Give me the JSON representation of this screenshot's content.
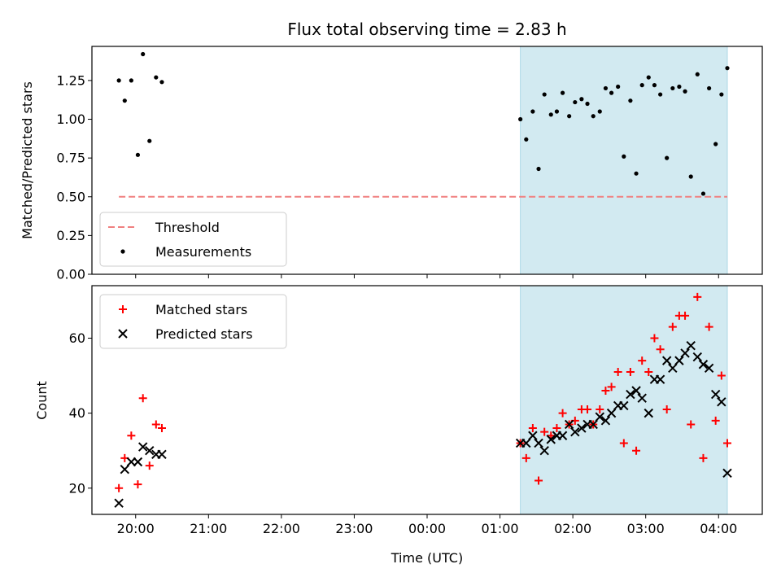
{
  "chart_data": {
    "type": "scatter",
    "title": "Flux total observing time = 2.83 h",
    "xlabel": "Time (UTC)",
    "x_unit": "hours since 20:00 UTC (axis shows clock time)",
    "x_ticks": [
      0,
      1,
      2,
      3,
      4,
      5,
      6,
      7,
      8
    ],
    "x_tick_labels": [
      "20:00",
      "21:00",
      "22:00",
      "23:00",
      "00:00",
      "01:00",
      "02:00",
      "03:00",
      "04:00"
    ],
    "xlim": [
      -0.6,
      8.6
    ],
    "shaded_span": {
      "x": [
        5.28,
        8.12
      ],
      "color": "#add8e6"
    },
    "panels": [
      {
        "ylabel": "Matched/Predicted stars",
        "ylim": [
          0.0,
          1.47
        ],
        "y_ticks": [
          0.0,
          0.25,
          0.5,
          0.75,
          1.0,
          1.25
        ],
        "y_tick_labels": [
          "0.00",
          "0.25",
          "0.50",
          "0.75",
          "1.00",
          "1.25"
        ],
        "legend": {
          "position": "lower left"
        },
        "series": [
          {
            "name": "Threshold",
            "kind": "hline",
            "y": 0.5,
            "x": [
              -0.23,
              8.12
            ],
            "color": "#f08080",
            "style": "dashed"
          },
          {
            "name": "Measurements",
            "kind": "dot",
            "color": "#000000",
            "points": [
              [
                -0.23,
                1.25
              ],
              [
                -0.15,
                1.12
              ],
              [
                -0.06,
                1.25
              ],
              [
                0.03,
                0.77
              ],
              [
                0.1,
                1.42
              ],
              [
                0.19,
                0.86
              ],
              [
                0.28,
                1.27
              ],
              [
                0.36,
                1.24
              ],
              [
                5.28,
                1.0
              ],
              [
                5.36,
                0.87
              ],
              [
                5.45,
                1.05
              ],
              [
                5.53,
                0.68
              ],
              [
                5.61,
                1.16
              ],
              [
                5.7,
                1.03
              ],
              [
                5.78,
                1.05
              ],
              [
                5.86,
                1.17
              ],
              [
                5.95,
                1.02
              ],
              [
                6.03,
                1.11
              ],
              [
                6.12,
                1.13
              ],
              [
                6.2,
                1.1
              ],
              [
                6.28,
                1.02
              ],
              [
                6.37,
                1.05
              ],
              [
                6.45,
                1.2
              ],
              [
                6.53,
                1.17
              ],
              [
                6.62,
                1.21
              ],
              [
                6.7,
                0.76
              ],
              [
                6.79,
                1.12
              ],
              [
                6.87,
                0.65
              ],
              [
                6.95,
                1.22
              ],
              [
                7.04,
                1.27
              ],
              [
                7.12,
                1.22
              ],
              [
                7.2,
                1.16
              ],
              [
                7.29,
                0.75
              ],
              [
                7.37,
                1.2
              ],
              [
                7.46,
                1.21
              ],
              [
                7.54,
                1.18
              ],
              [
                7.62,
                0.63
              ],
              [
                7.71,
                1.29
              ],
              [
                7.79,
                0.52
              ],
              [
                7.87,
                1.2
              ],
              [
                7.96,
                0.84
              ],
              [
                8.04,
                1.16
              ],
              [
                8.12,
                1.33
              ]
            ]
          }
        ]
      },
      {
        "ylabel": "Count",
        "ylim": [
          13.0,
          74.0
        ],
        "y_ticks": [
          20,
          40,
          60
        ],
        "y_tick_labels": [
          "20",
          "40",
          "60"
        ],
        "legend": {
          "position": "upper left"
        },
        "series": [
          {
            "name": "Matched stars",
            "kind": "plus",
            "color": "#ff0000",
            "points": [
              [
                -0.23,
                20
              ],
              [
                -0.15,
                28
              ],
              [
                -0.06,
                34
              ],
              [
                0.03,
                21
              ],
              [
                0.1,
                44
              ],
              [
                0.19,
                26
              ],
              [
                0.28,
                37
              ],
              [
                0.36,
                36
              ],
              [
                5.28,
                32
              ],
              [
                5.36,
                28
              ],
              [
                5.45,
                36
              ],
              [
                5.53,
                22
              ],
              [
                5.61,
                35
              ],
              [
                5.7,
                34
              ],
              [
                5.78,
                36
              ],
              [
                5.86,
                40
              ],
              [
                5.95,
                37
              ],
              [
                6.03,
                38
              ],
              [
                6.12,
                41
              ],
              [
                6.2,
                41
              ],
              [
                6.28,
                37
              ],
              [
                6.37,
                41
              ],
              [
                6.45,
                46
              ],
              [
                6.53,
                47
              ],
              [
                6.62,
                51
              ],
              [
                6.7,
                32
              ],
              [
                6.79,
                51
              ],
              [
                6.87,
                30
              ],
              [
                6.95,
                54
              ],
              [
                7.04,
                51
              ],
              [
                7.12,
                60
              ],
              [
                7.2,
                57
              ],
              [
                7.29,
                41
              ],
              [
                7.37,
                63
              ],
              [
                7.46,
                66
              ],
              [
                7.54,
                66
              ],
              [
                7.62,
                37
              ],
              [
                7.71,
                71
              ],
              [
                7.79,
                28
              ],
              [
                7.87,
                63
              ],
              [
                7.96,
                38
              ],
              [
                8.04,
                50
              ],
              [
                8.12,
                32
              ]
            ]
          },
          {
            "name": "Predicted stars",
            "kind": "x",
            "color": "#000000",
            "points": [
              [
                -0.23,
                16
              ],
              [
                -0.15,
                25
              ],
              [
                -0.06,
                27
              ],
              [
                0.03,
                27
              ],
              [
                0.1,
                31
              ],
              [
                0.19,
                30
              ],
              [
                0.28,
                29
              ],
              [
                0.36,
                29
              ],
              [
                5.28,
                32
              ],
              [
                5.36,
                32
              ],
              [
                5.45,
                34
              ],
              [
                5.53,
                32
              ],
              [
                5.61,
                30
              ],
              [
                5.7,
                33
              ],
              [
                5.78,
                34
              ],
              [
                5.86,
                34
              ],
              [
                5.95,
                37
              ],
              [
                6.03,
                35
              ],
              [
                6.12,
                36
              ],
              [
                6.2,
                37
              ],
              [
                6.28,
                37
              ],
              [
                6.37,
                39
              ],
              [
                6.45,
                38
              ],
              [
                6.53,
                40
              ],
              [
                6.62,
                42
              ],
              [
                6.7,
                42
              ],
              [
                6.79,
                45
              ],
              [
                6.87,
                46
              ],
              [
                6.95,
                44
              ],
              [
                7.04,
                40
              ],
              [
                7.12,
                49
              ],
              [
                7.2,
                49
              ],
              [
                7.29,
                54
              ],
              [
                7.37,
                52
              ],
              [
                7.46,
                54
              ],
              [
                7.54,
                56
              ],
              [
                7.62,
                58
              ],
              [
                7.71,
                55
              ],
              [
                7.79,
                53
              ],
              [
                7.87,
                52
              ],
              [
                7.96,
                45
              ],
              [
                8.04,
                43
              ],
              [
                8.12,
                24
              ]
            ]
          }
        ]
      }
    ]
  }
}
